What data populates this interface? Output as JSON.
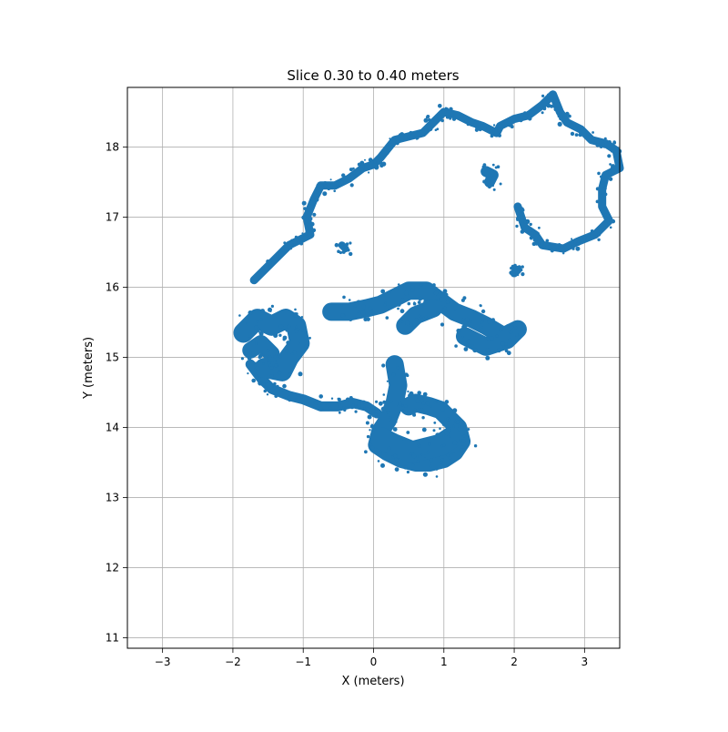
{
  "chart_data": {
    "type": "scatter",
    "title": "Slice 0.30 to 0.40 meters",
    "xlabel": "X (meters)",
    "ylabel": "Y (meters)",
    "xlim": [
      -3.5,
      3.5
    ],
    "ylim": [
      10.85,
      18.85
    ],
    "xticks": [
      -3,
      -2,
      -1,
      0,
      1,
      2,
      3
    ],
    "yticks": [
      11,
      12,
      13,
      14,
      15,
      16,
      17,
      18
    ],
    "xtick_labels": [
      "−3",
      "−2",
      "−1",
      "0",
      "1",
      "2",
      "3"
    ],
    "ytick_labels": [
      "11",
      "12",
      "13",
      "14",
      "15",
      "16",
      "17",
      "18"
    ],
    "grid": true,
    "point_color": "#1f77b4",
    "series": [
      {
        "style": "path",
        "points": [
          [
            -1.7,
            16.1
          ],
          [
            -1.4,
            16.4
          ],
          [
            -1.2,
            16.6
          ],
          [
            -1.0,
            16.7
          ],
          [
            -0.9,
            16.75
          ],
          [
            -0.95,
            17.0
          ],
          [
            -0.85,
            17.25
          ],
          [
            -0.75,
            17.45
          ],
          [
            -0.55,
            17.45
          ],
          [
            -0.35,
            17.55
          ],
          [
            -0.15,
            17.7
          ],
          [
            0.0,
            17.75
          ],
          [
            0.1,
            17.85
          ],
          [
            0.3,
            18.1
          ],
          [
            0.5,
            18.15
          ],
          [
            0.7,
            18.2
          ],
          [
            0.85,
            18.35
          ],
          [
            1.0,
            18.5
          ],
          [
            1.2,
            18.45
          ],
          [
            1.4,
            18.35
          ],
          [
            1.55,
            18.3
          ],
          [
            1.75,
            18.2
          ],
          [
            1.8,
            18.3
          ],
          [
            2.0,
            18.4
          ],
          [
            2.2,
            18.45
          ],
          [
            2.4,
            18.6
          ],
          [
            2.55,
            18.75
          ],
          [
            2.65,
            18.5
          ],
          [
            2.75,
            18.35
          ],
          [
            2.95,
            18.25
          ],
          [
            3.1,
            18.1
          ],
          [
            3.3,
            18.05
          ],
          [
            3.45,
            17.95
          ],
          [
            3.5,
            17.7
          ],
          [
            3.3,
            17.6
          ],
          [
            3.25,
            17.4
          ],
          [
            3.25,
            17.15
          ],
          [
            3.35,
            16.95
          ],
          [
            3.15,
            16.75
          ],
          [
            2.9,
            16.65
          ],
          [
            2.7,
            16.55
          ],
          [
            2.4,
            16.6
          ],
          [
            2.3,
            16.75
          ],
          [
            2.15,
            16.85
          ],
          [
            2.05,
            17.15
          ]
        ],
        "width": 9
      },
      {
        "style": "path",
        "points": [
          [
            -1.75,
            14.9
          ],
          [
            -1.6,
            14.7
          ],
          [
            -1.45,
            14.55
          ],
          [
            -1.2,
            14.45
          ],
          [
            -1.0,
            14.4
          ],
          [
            -0.75,
            14.3
          ],
          [
            -0.5,
            14.3
          ],
          [
            -0.3,
            14.35
          ],
          [
            -0.1,
            14.3
          ],
          [
            0.05,
            14.2
          ]
        ],
        "width": 11
      },
      {
        "style": "path",
        "points": [
          [
            -1.85,
            15.35
          ],
          [
            -1.65,
            15.55
          ],
          [
            -1.45,
            15.45
          ],
          [
            -1.25,
            15.55
          ],
          [
            -1.1,
            15.45
          ],
          [
            -1.05,
            15.2
          ],
          [
            -1.2,
            15.0
          ],
          [
            -1.3,
            14.8
          ],
          [
            -1.55,
            14.85
          ]
        ],
        "width": 22
      },
      {
        "style": "path",
        "points": [
          [
            -0.6,
            15.65
          ],
          [
            -0.35,
            15.65
          ],
          [
            -0.1,
            15.7
          ],
          [
            0.1,
            15.75
          ],
          [
            0.3,
            15.85
          ],
          [
            0.5,
            15.95
          ],
          [
            0.75,
            15.95
          ],
          [
            0.95,
            15.8
          ],
          [
            1.15,
            15.65
          ],
          [
            1.4,
            15.55
          ],
          [
            1.6,
            15.45
          ],
          [
            1.85,
            15.3
          ],
          [
            2.05,
            15.4
          ],
          [
            1.9,
            15.25
          ],
          [
            1.6,
            15.15
          ],
          [
            1.3,
            15.3
          ]
        ],
        "width": 20
      },
      {
        "style": "path",
        "points": [
          [
            0.3,
            14.9
          ],
          [
            0.35,
            14.6
          ],
          [
            0.3,
            14.35
          ],
          [
            0.2,
            14.1
          ],
          [
            0.1,
            13.95
          ],
          [
            0.05,
            13.75
          ],
          [
            0.2,
            13.65
          ],
          [
            0.4,
            13.55
          ],
          [
            0.6,
            13.5
          ],
          [
            0.8,
            13.5
          ],
          [
            1.0,
            13.55
          ],
          [
            1.15,
            13.65
          ],
          [
            1.25,
            13.8
          ],
          [
            1.2,
            14.0
          ],
          [
            1.05,
            14.15
          ],
          [
            0.95,
            14.25
          ],
          [
            0.8,
            14.3
          ],
          [
            0.6,
            14.35
          ],
          [
            0.5,
            14.3
          ]
        ],
        "width": 20
      },
      {
        "style": "path",
        "points": [
          [
            0.1,
            13.85
          ],
          [
            0.3,
            13.75
          ],
          [
            0.55,
            13.65
          ],
          [
            0.75,
            13.7
          ],
          [
            0.95,
            13.75
          ],
          [
            1.1,
            13.85
          ]
        ],
        "width": 24
      },
      {
        "style": "blob",
        "points": [
          [
            1.6,
            17.65
          ],
          [
            1.7,
            17.6
          ],
          [
            1.65,
            17.5
          ]
        ],
        "width": 12
      },
      {
        "style": "blob",
        "points": [
          [
            2.0,
            16.2
          ],
          [
            2.05,
            16.25
          ]
        ],
        "width": 9
      },
      {
        "style": "blob",
        "points": [
          [
            -0.45,
            16.6
          ],
          [
            -0.4,
            16.55
          ]
        ],
        "width": 8
      },
      {
        "style": "blob",
        "points": [
          [
            -1.75,
            15.1
          ],
          [
            -1.6,
            15.2
          ],
          [
            -1.45,
            15.05
          ]
        ],
        "width": 18
      },
      {
        "style": "blob",
        "points": [
          [
            0.45,
            15.45
          ],
          [
            0.6,
            15.6
          ],
          [
            0.85,
            15.7
          ]
        ],
        "width": 20
      }
    ]
  }
}
